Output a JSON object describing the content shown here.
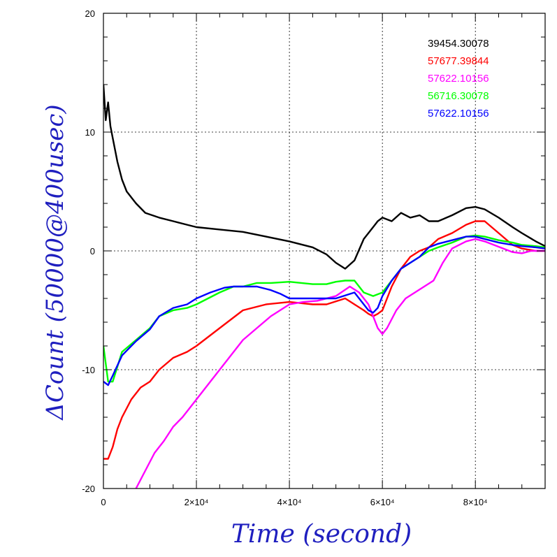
{
  "chart_data": {
    "type": "line",
    "title": "",
    "xlabel": "Time (second)",
    "ylabel": "ΔCount (50000@400usec)",
    "xlim": [
      0,
      95000
    ],
    "ylim": [
      -20,
      20
    ],
    "x_ticks": [
      {
        "value": 0,
        "label": "0"
      },
      {
        "value": 20000,
        "label": "2×10⁴"
      },
      {
        "value": 40000,
        "label": "4×10⁴"
      },
      {
        "value": 60000,
        "label": "6×10⁴"
      },
      {
        "value": 80000,
        "label": "8×10⁴"
      }
    ],
    "y_ticks": [
      {
        "value": -20,
        "label": "-20"
      },
      {
        "value": -10,
        "label": "-10"
      },
      {
        "value": 0,
        "label": "0"
      },
      {
        "value": 10,
        "label": "10"
      },
      {
        "value": 20,
        "label": "20"
      }
    ],
    "grid": true,
    "legend_position": "top-right",
    "series": [
      {
        "name": "39454.30078",
        "color": "#000000",
        "x": [
          0,
          500,
          1000,
          1500,
          2000,
          3000,
          4000,
          5000,
          7000,
          9000,
          12000,
          15000,
          18000,
          20000,
          25000,
          30000,
          35000,
          40000,
          45000,
          48000,
          50000,
          52000,
          54000,
          56000,
          58000,
          59000,
          60000,
          62000,
          64000,
          66000,
          68000,
          70000,
          72000,
          75000,
          78000,
          80000,
          82000,
          85000,
          88000,
          90000,
          93000,
          95000
        ],
        "y": [
          14,
          11,
          12.5,
          10.5,
          9.5,
          7.5,
          6,
          5,
          4,
          3.2,
          2.8,
          2.5,
          2.2,
          2,
          1.8,
          1.6,
          1.2,
          0.8,
          0.3,
          -0.3,
          -1,
          -1.5,
          -0.8,
          1,
          2,
          2.5,
          2.8,
          2.5,
          3.2,
          2.8,
          3,
          2.5,
          2.5,
          3,
          3.6,
          3.7,
          3.5,
          2.8,
          2,
          1.5,
          0.8,
          0.4
        ]
      },
      {
        "name": "57677.39844",
        "color": "#ff0000",
        "x": [
          0,
          1000,
          2000,
          3000,
          4000,
          6000,
          8000,
          10000,
          12000,
          15000,
          18000,
          20000,
          25000,
          30000,
          35000,
          40000,
          45000,
          48000,
          52000,
          54000,
          56000,
          57000,
          58000,
          59000,
          60000,
          62000,
          64000,
          66000,
          68000,
          70000,
          72000,
          75000,
          78000,
          80000,
          82000,
          85000,
          88000,
          90000,
          93000,
          95000
        ],
        "y": [
          -17.5,
          -17.5,
          -16.5,
          -15,
          -14,
          -12.5,
          -11.5,
          -11,
          -10,
          -9,
          -8.5,
          -8,
          -6.5,
          -5,
          -4.5,
          -4.3,
          -4.5,
          -4.5,
          -4,
          -4.5,
          -5,
          -5.3,
          -5.5,
          -5.3,
          -5,
          -3,
          -1.5,
          -0.5,
          0,
          0.3,
          1,
          1.5,
          2.2,
          2.5,
          2.5,
          1.5,
          0.5,
          0.2,
          0,
          0
        ]
      },
      {
        "name": "57622.10156",
        "color": "#ff00ff",
        "x": [
          7000,
          9000,
          11000,
          13000,
          15000,
          17000,
          20000,
          23000,
          26000,
          28000,
          30000,
          33000,
          36000,
          38000,
          40000,
          43000,
          46000,
          50000,
          53000,
          55000,
          57000,
          58000,
          59000,
          60000,
          61000,
          63000,
          65000,
          67000,
          69000,
          71000,
          73000,
          75000,
          78000,
          80000,
          82000,
          84000,
          86000,
          88000,
          90000,
          92000,
          95000
        ],
        "y": [
          -20,
          -18.5,
          -17,
          -16,
          -14.8,
          -14,
          -12.5,
          -11,
          -9.5,
          -8.5,
          -7.5,
          -6.5,
          -5.5,
          -5,
          -4.5,
          -4.3,
          -4.2,
          -3.8,
          -3,
          -3.5,
          -4.5,
          -5.5,
          -6.5,
          -7,
          -6.5,
          -5,
          -4,
          -3.5,
          -3,
          -2.5,
          -1,
          0.2,
          0.8,
          1,
          0.8,
          0.5,
          0.2,
          -0.1,
          -0.2,
          0,
          0
        ]
      },
      {
        "name": "56716.30078",
        "color": "#00ff00",
        "x": [
          0,
          1000,
          2000,
          4000,
          7000,
          10000,
          12000,
          15000,
          18000,
          20000,
          25000,
          28000,
          30000,
          33000,
          36000,
          40000,
          45000,
          48000,
          50000,
          52000,
          54000,
          56000,
          58000,
          60000,
          62000,
          64000,
          66000,
          68000,
          70000,
          72000,
          75000,
          78000,
          80000,
          82000,
          85000,
          88000,
          90000,
          93000,
          95000
        ],
        "y": [
          -8,
          -11,
          -11,
          -8.5,
          -7.5,
          -6.5,
          -5.5,
          -5,
          -4.8,
          -4.5,
          -3.5,
          -3,
          -3,
          -2.7,
          -2.7,
          -2.6,
          -2.8,
          -2.8,
          -2.6,
          -2.5,
          -2.5,
          -3.5,
          -3.8,
          -3.5,
          -2.5,
          -1.5,
          -1,
          -0.5,
          0,
          0.3,
          0.7,
          1.2,
          1.3,
          1.2,
          0.9,
          0.7,
          0.5,
          0.4,
          0.3
        ]
      },
      {
        "name": "57622.10156",
        "color": "#0000ff",
        "x": [
          0,
          1000,
          2000,
          4000,
          7000,
          10000,
          12000,
          15000,
          18000,
          20000,
          23000,
          26000,
          28000,
          30000,
          33000,
          36000,
          38000,
          40000,
          50000,
          54000,
          56000,
          57000,
          58000,
          59000,
          60000,
          62000,
          64000,
          66000,
          68000,
          70000,
          72000,
          75000,
          78000,
          80000,
          82000,
          85000,
          88000,
          90000,
          93000,
          95000
        ],
        "y": [
          -11,
          -11.3,
          -10.5,
          -8.8,
          -7.6,
          -6.6,
          -5.5,
          -4.8,
          -4.5,
          -4,
          -3.5,
          -3.1,
          -3,
          -3,
          -3,
          -3.3,
          -3.6,
          -4,
          -4,
          -3.5,
          -4.5,
          -5,
          -5.2,
          -4.8,
          -3.8,
          -2.5,
          -1.5,
          -1,
          -0.5,
          0.3,
          0.6,
          0.9,
          1.2,
          1.2,
          1,
          0.7,
          0.5,
          0.4,
          0.3,
          0.2
        ]
      }
    ]
  }
}
